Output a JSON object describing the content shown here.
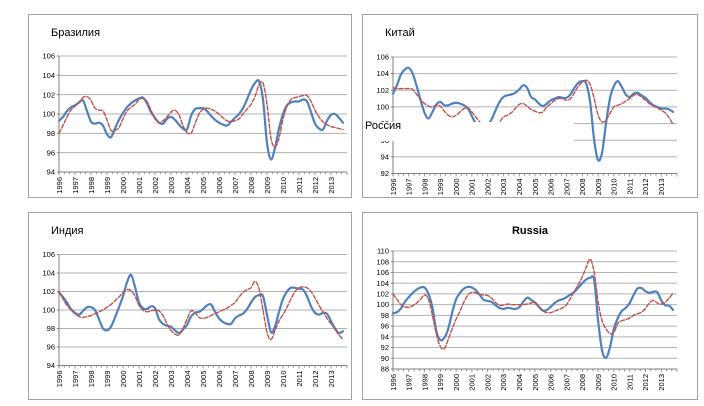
{
  "colors": {
    "series_blue": "#4f81bd",
    "series_red": "#c0504d",
    "grid": "#b0b0b0",
    "axis": "#808080",
    "panel_border": "#a3a3a3",
    "text": "#000000"
  },
  "overlay_label": {
    "text": "Россия"
  },
  "years": [
    "1996",
    "1997",
    "1998",
    "1999",
    "2000",
    "2001",
    "2002",
    "2003",
    "2004",
    "2005",
    "2006",
    "2007",
    "2008",
    "2009",
    "2010",
    "2011",
    "2012",
    "2013"
  ],
  "chart_data": [
    {
      "type": "line",
      "title": "Бразилия",
      "title_style": "plain-left",
      "ylim": [
        94,
        106
      ],
      "ytick_step": 2,
      "x_start": 1996,
      "x_step_years": 0.25,
      "grid": true,
      "legend": "none",
      "series": [
        {
          "name": "blue-solid",
          "style": "solid",
          "color_key": "series_blue",
          "values": [
            99.3,
            99.7,
            100.3,
            100.7,
            100.9,
            101.2,
            101.4,
            100.3,
            99.2,
            99.0,
            99.1,
            98.8,
            97.9,
            97.6,
            98.5,
            99.4,
            100.1,
            100.7,
            101.1,
            101.4,
            101.6,
            101.7,
            101.1,
            100.2,
            99.6,
            99.1,
            99.0,
            99.5,
            99.7,
            99.4,
            98.9,
            98.5,
            98.4,
            99.8,
            100.5,
            100.6,
            100.6,
            100.3,
            99.8,
            99.4,
            99.1,
            98.9,
            98.8,
            99.2,
            99.6,
            100.0,
            100.6,
            101.5,
            102.5,
            103.2,
            103.4,
            101.5,
            97.0,
            95.3,
            96.5,
            98.5,
            100.0,
            100.9,
            101.2,
            101.3,
            101.3,
            101.5,
            101.3,
            100.2,
            99.0,
            98.5,
            98.4,
            99.3,
            99.9,
            100.0,
            99.6,
            99.1
          ]
        },
        {
          "name": "red-dashed",
          "style": "dashed",
          "color_key": "series_red",
          "values": [
            98.0,
            98.8,
            99.7,
            100.4,
            100.8,
            101.2,
            101.7,
            101.8,
            101.4,
            100.6,
            100.4,
            100.3,
            99.4,
            98.3,
            98.3,
            98.6,
            99.5,
            100.3,
            100.7,
            101.0,
            101.5,
            101.6,
            101.3,
            100.4,
            99.5,
            99.1,
            99.3,
            99.7,
            100.2,
            100.4,
            99.9,
            98.8,
            98.1,
            98.0,
            99.0,
            100.0,
            100.5,
            100.6,
            100.5,
            100.3,
            100.0,
            99.6,
            99.3,
            99.2,
            99.3,
            99.5,
            100.0,
            100.5,
            101.0,
            101.8,
            103.0,
            103.2,
            101.0,
            97.5,
            96.6,
            97.5,
            99.5,
            100.8,
            101.5,
            101.7,
            101.8,
            101.9,
            101.9,
            101.3,
            100.4,
            99.7,
            99.2,
            98.9,
            98.7,
            98.6,
            98.5,
            98.4
          ]
        }
      ]
    },
    {
      "type": "line",
      "title": "Китай",
      "title_style": "plain-left",
      "ylim": [
        92,
        106
      ],
      "ytick_step": 2,
      "x_start": 1996,
      "x_step_years": 0.25,
      "grid": true,
      "legend": "none",
      "series": [
        {
          "name": "blue-solid",
          "style": "solid",
          "color_key": "series_blue",
          "values": [
            101.6,
            102.6,
            103.9,
            104.5,
            104.7,
            104.0,
            102.5,
            100.8,
            99.3,
            98.6,
            99.4,
            100.3,
            100.6,
            100.2,
            100.2,
            100.4,
            100.5,
            100.4,
            100.2,
            99.8,
            98.9,
            98.0,
            97.5,
            97.4,
            97.8,
            98.5,
            99.6,
            100.6,
            101.2,
            101.4,
            101.5,
            101.7,
            102.1,
            102.6,
            102.3,
            101.2,
            100.9,
            100.4,
            100.1,
            100.4,
            100.8,
            101.0,
            101.2,
            101.1,
            101.1,
            101.5,
            102.3,
            102.9,
            103.1,
            102.8,
            100.5,
            96.0,
            93.6,
            94.5,
            98.0,
            101.0,
            102.5,
            103.1,
            102.4,
            101.5,
            101.2,
            101.6,
            101.7,
            101.4,
            101.1,
            100.6,
            100.2,
            100.0,
            99.8,
            99.8,
            99.7,
            99.4
          ]
        },
        {
          "name": "red-dashed",
          "style": "dashed",
          "color_key": "series_red",
          "values": [
            102.3,
            102.2,
            102.2,
            102.2,
            102.2,
            102.1,
            101.5,
            100.9,
            100.4,
            100.1,
            100.0,
            100.2,
            100.1,
            99.5,
            99.0,
            98.8,
            99.0,
            99.4,
            99.8,
            99.9,
            99.4,
            98.8,
            98.2,
            97.9,
            97.7,
            97.8,
            98.0,
            98.2,
            98.8,
            99.0,
            99.3,
            99.8,
            100.3,
            100.4,
            100.1,
            99.7,
            99.5,
            99.3,
            99.4,
            100.0,
            100.4,
            100.8,
            101.0,
            101.0,
            100.8,
            101.0,
            101.7,
            102.5,
            103.0,
            103.2,
            102.7,
            101.0,
            99.0,
            98.2,
            98.4,
            99.2,
            100.0,
            100.2,
            100.4,
            100.7,
            101.0,
            101.4,
            101.5,
            101.2,
            100.8,
            100.4,
            100.1,
            99.9,
            99.6,
            99.3,
            98.7,
            97.9
          ]
        }
      ]
    },
    {
      "type": "line",
      "title": "Индия",
      "title_style": "plain-left",
      "ylim": [
        94,
        106
      ],
      "ytick_step": 2,
      "x_start": 1996,
      "x_step_years": 0.25,
      "grid": true,
      "legend": "none",
      "series": [
        {
          "name": "blue-solid",
          "style": "solid",
          "color_key": "series_blue",
          "values": [
            101.9,
            101.4,
            100.8,
            100.1,
            99.7,
            99.5,
            99.9,
            100.3,
            100.3,
            100.0,
            99.0,
            98.0,
            97.8,
            98.2,
            99.2,
            100.3,
            101.5,
            103.0,
            103.8,
            102.5,
            100.8,
            100.2,
            100.1,
            100.4,
            100.2,
            99.0,
            98.5,
            98.3,
            98.2,
            97.8,
            97.5,
            97.9,
            98.4,
            99.3,
            99.7,
            99.8,
            100.1,
            100.5,
            100.6,
            99.8,
            99.1,
            98.7,
            98.5,
            98.5,
            99.1,
            99.4,
            99.6,
            100.1,
            100.8,
            101.4,
            101.6,
            101.5,
            99.5,
            97.6,
            98.2,
            99.8,
            101.2,
            102.0,
            102.4,
            102.4,
            102.3,
            102.2,
            101.5,
            100.4,
            99.7,
            99.5,
            99.7,
            99.6,
            98.8,
            98.0,
            97.5,
            97.7
          ]
        },
        {
          "name": "red-dashed",
          "style": "dashed",
          "color_key": "series_red",
          "values": [
            102.0,
            101.2,
            100.5,
            100.0,
            99.6,
            99.3,
            99.2,
            99.3,
            99.4,
            99.6,
            99.8,
            100.0,
            100.3,
            100.6,
            101.0,
            101.4,
            101.9,
            102.2,
            102.1,
            101.5,
            100.5,
            100.0,
            99.8,
            99.9,
            100.0,
            99.9,
            99.4,
            98.5,
            97.8,
            97.4,
            97.3,
            98.0,
            99.0,
            99.9,
            99.7,
            99.2,
            99.1,
            99.2,
            99.4,
            99.6,
            99.8,
            100.0,
            100.2,
            100.5,
            100.8,
            101.4,
            101.9,
            102.2,
            102.4,
            103.1,
            102.3,
            100.0,
            97.6,
            96.8,
            97.8,
            98.8,
            99.5,
            100.3,
            101.2,
            102.0,
            102.4,
            102.5,
            102.4,
            102.0,
            101.3,
            100.5,
            99.8,
            99.1,
            98.5,
            97.9,
            97.3,
            96.8
          ]
        }
      ]
    },
    {
      "type": "line",
      "title": "Russia",
      "title_style": "bold-center",
      "ylim": [
        88,
        110
      ],
      "ytick_step": 2,
      "x_start": 1996,
      "x_step_years": 0.25,
      "grid": true,
      "legend": "none",
      "series": [
        {
          "name": "blue-solid",
          "style": "solid",
          "color_key": "series_blue",
          "values": [
            98.4,
            98.6,
            99.3,
            100.5,
            101.4,
            102.2,
            102.8,
            103.2,
            103.2,
            102.0,
            99.5,
            95.0,
            93.4,
            93.8,
            95.5,
            98.5,
            101.0,
            102.2,
            103.0,
            103.3,
            103.2,
            102.7,
            101.8,
            100.9,
            100.7,
            100.5,
            99.9,
            99.4,
            99.2,
            99.4,
            99.3,
            99.2,
            99.5,
            100.5,
            101.3,
            100.9,
            100.4,
            99.6,
            98.9,
            99.0,
            99.6,
            100.3,
            100.8,
            101.0,
            101.4,
            101.9,
            102.4,
            103.2,
            104.0,
            104.7,
            105.0,
            104.6,
            97.0,
            91.5,
            90.1,
            92.0,
            95.5,
            97.5,
            98.8,
            99.4,
            100.3,
            101.8,
            103.0,
            103.1,
            102.5,
            102.2,
            102.4,
            102.3,
            100.8,
            99.9,
            99.8,
            99.0
          ]
        },
        {
          "name": "red-dashed",
          "style": "dashed",
          "color_key": "series_red",
          "values": [
            102.0,
            101.0,
            100.0,
            99.6,
            99.5,
            99.8,
            100.3,
            101.0,
            101.8,
            101.0,
            98.0,
            94.5,
            92.2,
            91.8,
            93.5,
            95.5,
            97.3,
            98.8,
            100.5,
            101.8,
            102.3,
            102.2,
            101.9,
            101.8,
            101.7,
            101.2,
            100.4,
            99.9,
            99.9,
            100.1,
            100.0,
            100.0,
            100.0,
            100.0,
            100.1,
            100.3,
            100.4,
            99.5,
            98.8,
            98.5,
            98.5,
            98.8,
            99.1,
            99.4,
            100.0,
            101.2,
            102.5,
            103.8,
            105.2,
            107.0,
            108.5,
            106.0,
            100.5,
            97.0,
            95.5,
            94.6,
            94.8,
            96.5,
            97.0,
            97.2,
            97.5,
            98.0,
            98.3,
            98.6,
            99.3,
            100.3,
            100.8,
            100.3,
            100.1,
            100.4,
            101.2,
            102.1
          ]
        }
      ]
    }
  ]
}
